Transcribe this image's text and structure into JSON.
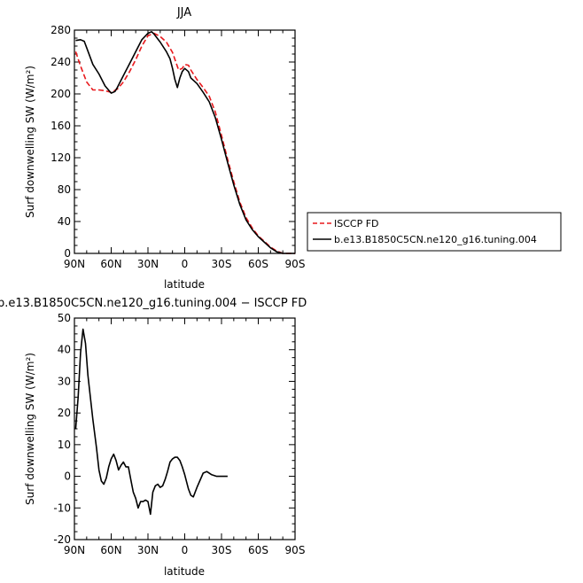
{
  "chart_data": [
    {
      "type": "line",
      "title": "JJA",
      "xlabel": "latitude",
      "ylabel": "Surf downwelling SW (W/m²)",
      "x_tick_labels": [
        "90N",
        "60N",
        "30N",
        "0",
        "30S",
        "60S",
        "90S"
      ],
      "x_tick_values": [
        90,
        60,
        30,
        0,
        -30,
        -60,
        -90
      ],
      "xlim": [
        90,
        -90
      ],
      "ylim": [
        0,
        280
      ],
      "y_ticks": [
        0,
        40,
        80,
        120,
        160,
        200,
        240,
        280
      ],
      "legend_position": "right",
      "series": [
        {
          "name": "ISCCP FD",
          "color": "#e8191d",
          "dash": "dashed",
          "points": [
            [
              89,
              253
            ],
            [
              85,
              235
            ],
            [
              80,
              215
            ],
            [
              75,
              205
            ],
            [
              70,
              205
            ],
            [
              65,
              204
            ],
            [
              60,
              202
            ],
            [
              55,
              206
            ],
            [
              50,
              215
            ],
            [
              45,
              228
            ],
            [
              40,
              243
            ],
            [
              35,
              260
            ],
            [
              30,
              273
            ],
            [
              25,
              276
            ],
            [
              20,
              272
            ],
            [
              15,
              265
            ],
            [
              10,
              252
            ],
            [
              5,
              230
            ],
            [
              2,
              232
            ],
            [
              0,
              237
            ],
            [
              -3,
              236
            ],
            [
              -5,
              230
            ],
            [
              -10,
              218
            ],
            [
              -15,
              208
            ],
            [
              -20,
              197
            ],
            [
              -25,
              177
            ],
            [
              -30,
              148
            ],
            [
              -35,
              118
            ],
            [
              -40,
              90
            ],
            [
              -45,
              64
            ],
            [
              -50,
              45
            ],
            [
              -55,
              32
            ],
            [
              -60,
              22
            ],
            [
              -65,
              15
            ],
            [
              -70,
              8
            ],
            [
              -75,
              3
            ],
            [
              -80,
              0
            ],
            [
              -85,
              0
            ],
            [
              -90,
              0
            ]
          ]
        },
        {
          "name": "b.e13.B1850C5CN.ne120_g16.tuning.004",
          "color": "#000000",
          "dash": "solid",
          "points": [
            [
              89,
              267
            ],
            [
              85,
              268
            ],
            [
              82,
              266
            ],
            [
              80,
              258
            ],
            [
              75,
              237
            ],
            [
              70,
              225
            ],
            [
              65,
              210
            ],
            [
              60,
              201
            ],
            [
              57,
              203
            ],
            [
              55,
              208
            ],
            [
              50,
              223
            ],
            [
              45,
              238
            ],
            [
              40,
              253
            ],
            [
              35,
              268
            ],
            [
              30,
              276
            ],
            [
              27,
              278
            ],
            [
              25,
              275
            ],
            [
              20,
              265
            ],
            [
              15,
              253
            ],
            [
              12,
              244
            ],
            [
              10,
              232
            ],
            [
              8,
              218
            ],
            [
              6,
              208
            ],
            [
              4,
              220
            ],
            [
              2,
              228
            ],
            [
              0,
              232
            ],
            [
              -3,
              228
            ],
            [
              -5,
              220
            ],
            [
              -10,
              213
            ],
            [
              -15,
              202
            ],
            [
              -20,
              190
            ],
            [
              -25,
              170
            ],
            [
              -30,
              143
            ],
            [
              -35,
              114
            ],
            [
              -40,
              86
            ],
            [
              -45,
              61
            ],
            [
              -50,
              42
            ],
            [
              -55,
              30
            ],
            [
              -60,
              21
            ],
            [
              -65,
              14
            ],
            [
              -70,
              7
            ],
            [
              -75,
              2
            ],
            [
              -80,
              0
            ],
            [
              -85,
              0
            ],
            [
              -90,
              0
            ]
          ]
        }
      ]
    },
    {
      "type": "line",
      "title": "b.e13.B1850C5CN.ne120_g16.tuning.004 − ISCCP FD",
      "xlabel": "latitude",
      "ylabel": "Surf downwelling SW (W/m²)",
      "x_tick_labels": [
        "90N",
        "60N",
        "30N",
        "0",
        "30S",
        "60S",
        "90S"
      ],
      "x_tick_values": [
        90,
        60,
        30,
        0,
        -30,
        -60,
        -90
      ],
      "xlim": [
        90,
        -90
      ],
      "ylim": [
        -20,
        50
      ],
      "y_ticks": [
        -20,
        -10,
        0,
        10,
        20,
        30,
        40,
        50
      ],
      "series": [
        {
          "name": "",
          "color": "#000000",
          "dash": "solid",
          "points": [
            [
              89,
              15
            ],
            [
              87,
              25
            ],
            [
              85,
              39
            ],
            [
              83,
              46.5
            ],
            [
              81,
              42
            ],
            [
              79,
              32
            ],
            [
              75,
              18
            ],
            [
              72,
              9
            ],
            [
              70,
              2
            ],
            [
              68,
              -1.5
            ],
            [
              66,
              -2.5
            ],
            [
              64,
              -0.5
            ],
            [
              62,
              3
            ],
            [
              60,
              5.5
            ],
            [
              58,
              7
            ],
            [
              56,
              5
            ],
            [
              54,
              2
            ],
            [
              52,
              3.5
            ],
            [
              50,
              4.5
            ],
            [
              48,
              3
            ],
            [
              46,
              3
            ],
            [
              44,
              -1
            ],
            [
              42,
              -5
            ],
            [
              40,
              -7
            ],
            [
              38,
              -10
            ],
            [
              36,
              -8
            ],
            [
              34,
              -8
            ],
            [
              32,
              -7.5
            ],
            [
              30,
              -8
            ],
            [
              28,
              -12
            ],
            [
              26,
              -5
            ],
            [
              24,
              -3
            ],
            [
              22,
              -2.5
            ],
            [
              20,
              -3.5
            ],
            [
              18,
              -3
            ],
            [
              16,
              -1
            ],
            [
              14,
              1.5
            ],
            [
              12,
              4.5
            ],
            [
              10,
              5.5
            ],
            [
              8,
              6
            ],
            [
              6,
              6
            ],
            [
              4,
              5
            ],
            [
              2,
              3
            ],
            [
              0,
              0.5
            ],
            [
              -3,
              -4
            ],
            [
              -5,
              -6
            ],
            [
              -7,
              -6.5
            ],
            [
              -10,
              -3.5
            ],
            [
              -15,
              1
            ],
            [
              -18,
              1.5
            ],
            [
              -22,
              0.5
            ],
            [
              -26,
              0
            ],
            [
              -30,
              0
            ],
            [
              -35,
              0
            ]
          ]
        }
      ]
    }
  ]
}
